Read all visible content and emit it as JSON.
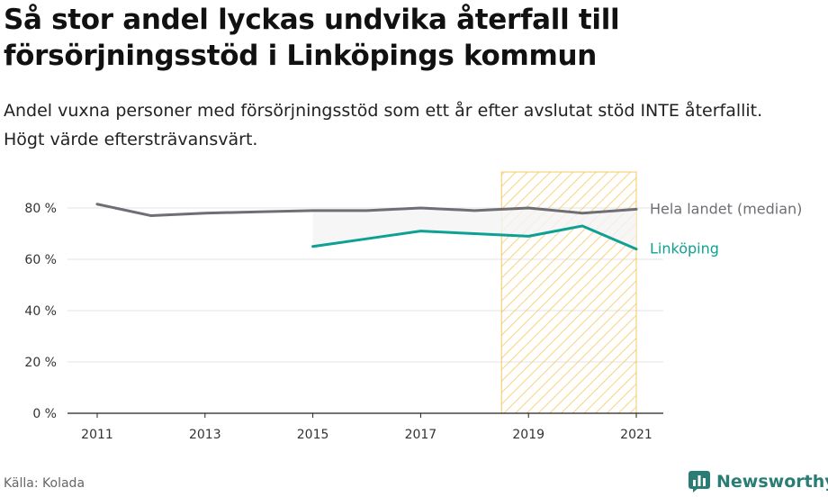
{
  "title": "Så stor andel lyckas undvika återfall till försörjningsstöd i Linköpings kommun",
  "subtitle": "Andel vuxna personer med försörjningsstöd som ett år efter avslutat stöd INTE återfallit. Högt värde eftersträvansvärt.",
  "source": "Källa: Kolada",
  "brand": "Newsworthy",
  "colors": {
    "national": "#6e6e74",
    "linkoping": "#0ea193",
    "highlight": "#f6c85f",
    "brand": "#2a7d74"
  },
  "chart_data": {
    "type": "line",
    "x": [
      2011,
      2012,
      2013,
      2014,
      2015,
      2016,
      2017,
      2018,
      2019,
      2020,
      2021
    ],
    "series": [
      {
        "name": "Hela landet (median)",
        "values": [
          81.5,
          77,
          78,
          78.5,
          79,
          79,
          80,
          79,
          80,
          78,
          79.5
        ]
      },
      {
        "name": "Linköping",
        "values": [
          null,
          null,
          null,
          null,
          65,
          68,
          71,
          70,
          69,
          73,
          64
        ]
      }
    ],
    "xticks": [
      "2011",
      "2013",
      "2015",
      "2017",
      "2019",
      "2021"
    ],
    "yticks": [
      "0 %",
      "20 %",
      "40 %",
      "60 %",
      "80 %"
    ],
    "ylim": [
      0,
      90
    ],
    "highlight_range": [
      2018.5,
      2021
    ],
    "grid": true,
    "legend": "direct labels at line ends"
  }
}
